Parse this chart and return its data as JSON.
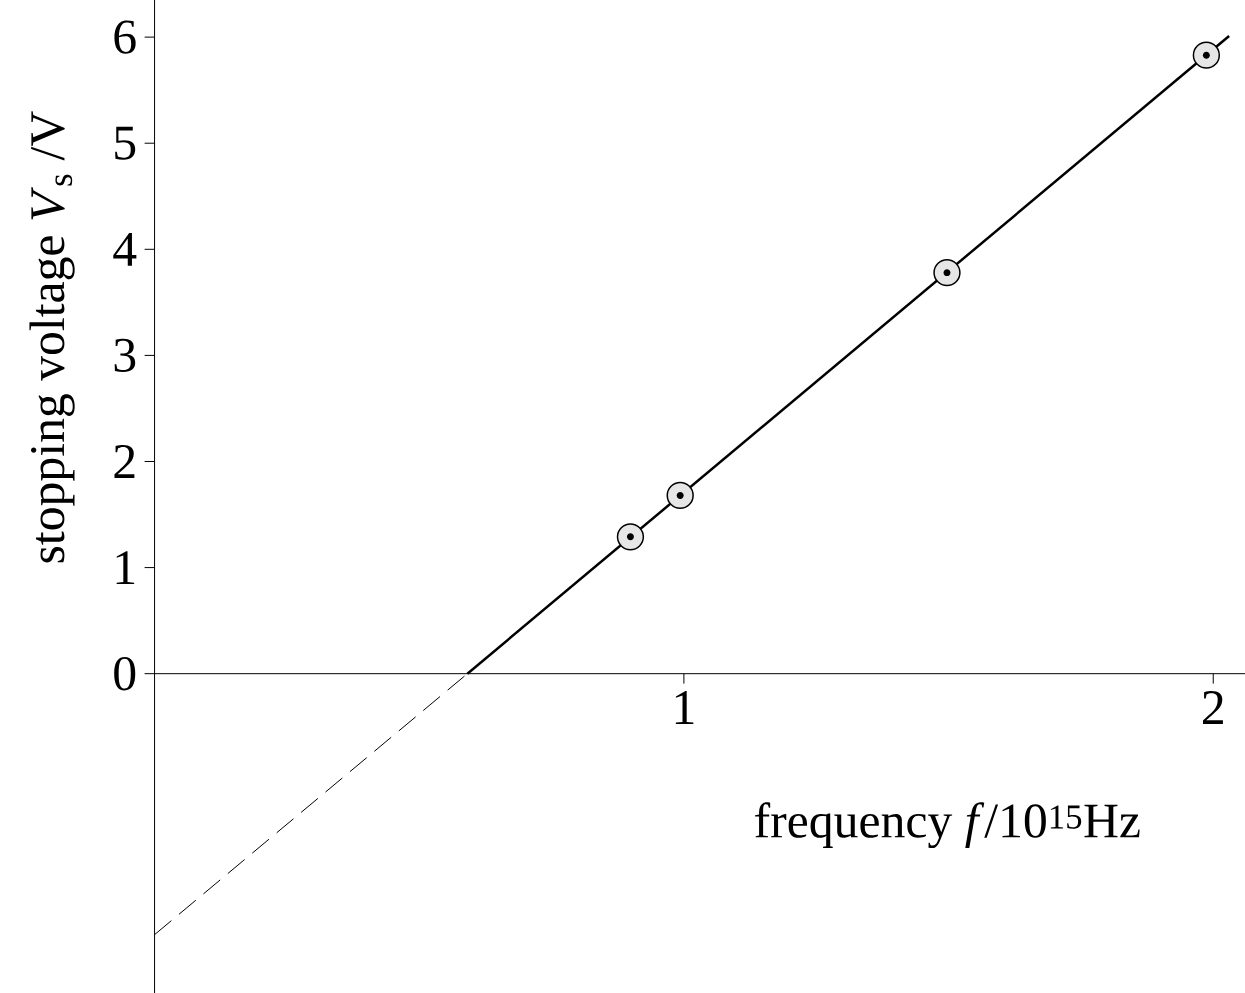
{
  "chart_data": {
    "type": "scatter",
    "xlabel": "frequency *f*/10$^{15}$Hz",
    "ylabel": "stopping voltage *V*$_{s}$ /V",
    "xlim": [
      0,
      2.06
    ],
    "ylim": [
      -3.01,
      6.35
    ],
    "xticks": [
      1,
      2
    ],
    "yticks": [
      0,
      1,
      2,
      3,
      4,
      5,
      6
    ],
    "series": [
      {
        "type": "line",
        "x": [
          0,
          0.591
        ],
        "values": [
          -2.46,
          0
        ],
        "color": "#000000",
        "line_style": "dashed"
      },
      {
        "type": "line",
        "x": [
          0.591,
          2.03
        ],
        "values": [
          0,
          6.01
        ],
        "color": "#000000",
        "line_style": "solid"
      },
      {
        "type": "scatter",
        "marker": "circle",
        "x": [
          0.899,
          0.993,
          1.497,
          1.987
        ],
        "values": [
          1.29,
          1.68,
          3.78,
          5.83
        ],
        "color": "#e6e6e6"
      }
    ]
  }
}
